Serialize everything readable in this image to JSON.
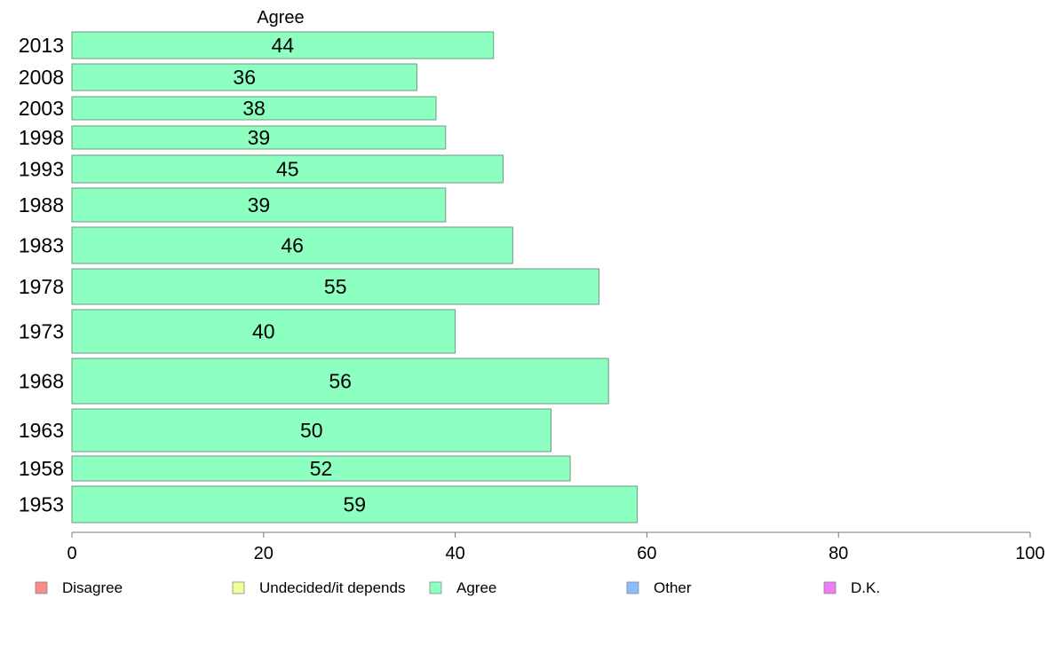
{
  "chart_data": {
    "type": "bar",
    "orientation": "horizontal",
    "title": "Agree",
    "categories": [
      "2013",
      "2008",
      "2003",
      "1998",
      "1993",
      "1988",
      "1983",
      "1978",
      "1973",
      "1968",
      "1963",
      "1958",
      "1953"
    ],
    "series": [
      {
        "name": "Agree",
        "values": [
          44,
          36,
          38,
          39,
          45,
          39,
          46,
          55,
          40,
          56,
          50,
          52,
          59
        ]
      }
    ],
    "xlim": [
      0,
      100
    ],
    "xticks": [
      0,
      20,
      40,
      60,
      80,
      100
    ],
    "grid": false,
    "legend_position": "bottom",
    "legend": [
      {
        "label": "Disagree",
        "color": "#fb8c8c"
      },
      {
        "label": "Undecided/it depends",
        "color": "#f0ff96"
      },
      {
        "label": "Agree",
        "color": "#8cffc1"
      },
      {
        "label": "Other",
        "color": "#8cbcff"
      },
      {
        "label": "D.K.",
        "color": "#ec7ef5"
      }
    ],
    "bar_color": "#8cffc1"
  }
}
